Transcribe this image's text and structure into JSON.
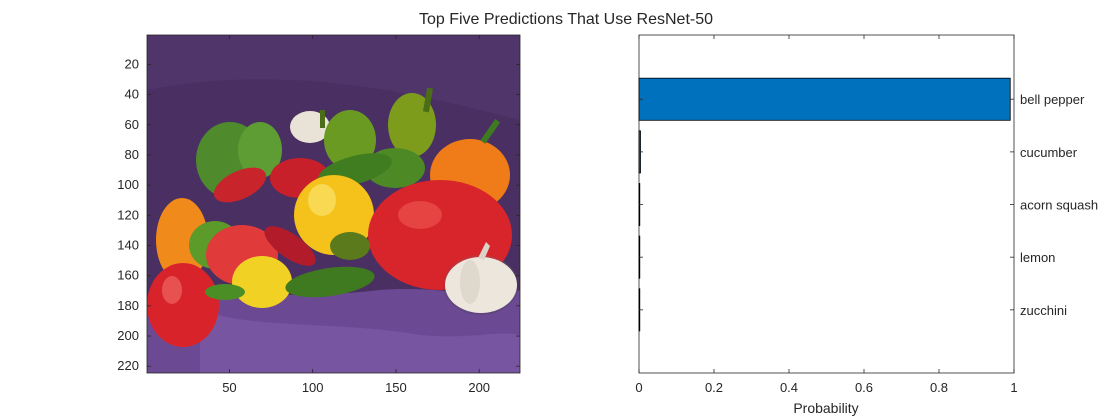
{
  "figure": {
    "title": "Top Five Predictions That Use ResNet-50"
  },
  "image_panel": {
    "subject": "image of assorted peppers, onion and garlic on purple cloth",
    "y_ticks": [
      "20",
      "40",
      "60",
      "80",
      "100",
      "120",
      "140",
      "160",
      "180",
      "200",
      "220"
    ],
    "x_ticks": [
      "50",
      "100",
      "150",
      "200"
    ],
    "colors": {
      "background_cloth": "#4a2f63",
      "cloth_front": "#6c4a93",
      "red_pepper": "#d8242b",
      "green_pepper": "#4f8a2c",
      "yellow_pepper": "#f3c21a",
      "orange_pepper": "#ee7d1a",
      "garlic": "#ece6dc"
    }
  },
  "chart_data": {
    "type": "bar",
    "orientation": "horizontal",
    "categories": [
      "bell pepper",
      "cucumber",
      "acorn squash",
      "lemon",
      "zucchini"
    ],
    "values": [
      0.99,
      0.004,
      0.001,
      0.0005,
      0.0003
    ],
    "xlabel": "Probability",
    "ylabel": "",
    "xlim": [
      0,
      1
    ],
    "x_ticks": [
      "0",
      "0.2",
      "0.4",
      "0.6",
      "0.8",
      "1"
    ],
    "grid": false,
    "bar_color": "#0072bd",
    "bar_edge_color": "#000000"
  }
}
